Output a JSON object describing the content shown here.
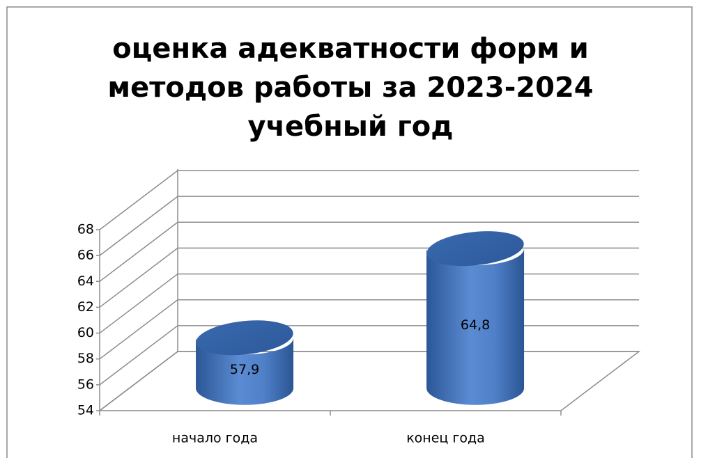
{
  "chart_data": {
    "type": "bar3d",
    "title": [
      "оценка адекватности форм и",
      "методов работы за 2023-2024",
      "учебный год"
    ],
    "categories": [
      "начало года",
      "конец года"
    ],
    "values": [
      57.9,
      64.8
    ],
    "value_labels": [
      "57,9",
      "64,8"
    ],
    "color": "#4a7cc4",
    "ylim": [
      54,
      68
    ],
    "yticks": [
      54,
      56,
      58,
      60,
      62,
      64,
      66,
      68
    ],
    "grid": true
  }
}
